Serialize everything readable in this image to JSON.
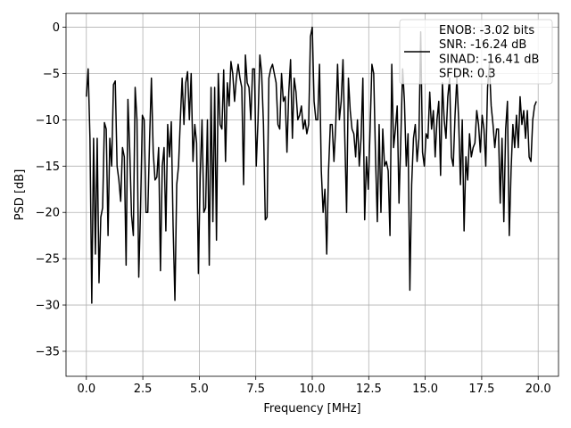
{
  "chart_data": {
    "type": "line",
    "xlabel": "Frequency [MHz]",
    "ylabel": "PSD [dB]",
    "xlim": [
      -0.9,
      20.9
    ],
    "ylim": [
      -37.7,
      1.5
    ],
    "grid": true,
    "legend_position": "top-right",
    "xticks": [
      0.0,
      2.5,
      5.0,
      7.5,
      10.0,
      12.5,
      15.0,
      17.5,
      20.0
    ],
    "xtick_labels": [
      "0.0",
      "2.5",
      "5.0",
      "7.5",
      "10.0",
      "12.5",
      "15.0",
      "17.5",
      "20.0"
    ],
    "yticks": [
      0,
      -5,
      -10,
      -15,
      -20,
      -25,
      -30,
      -35
    ],
    "ytick_labels": [
      "0",
      "−5",
      "−10",
      "−15",
      "−20",
      "−25",
      "−30",
      "−35"
    ],
    "legend": [
      "ENOB: -3.02 bits",
      "SNR: -16.24 dB",
      "SINAD: -16.41 dB",
      "SFDR: 0.3"
    ],
    "series": [
      {
        "color": "#000000",
        "x": [
          0.0,
          0.08,
          0.16,
          0.24,
          0.32,
          0.4,
          0.48,
          0.56,
          0.64,
          0.72,
          0.8,
          0.88,
          0.96,
          1.04,
          1.12,
          1.2,
          1.28,
          1.36,
          1.44,
          1.52,
          1.6,
          1.68,
          1.76,
          1.84,
          1.92,
          2.0,
          2.08,
          2.16,
          2.24,
          2.32,
          2.4,
          2.48,
          2.56,
          2.64,
          2.72,
          2.8,
          2.88,
          2.96,
          3.04,
          3.12,
          3.2,
          3.28,
          3.36,
          3.44,
          3.52,
          3.6,
          3.68,
          3.76,
          3.84,
          3.92,
          4.0,
          4.08,
          4.16,
          4.24,
          4.32,
          4.4,
          4.48,
          4.56,
          4.64,
          4.72,
          4.8,
          4.88,
          4.96,
          5.04,
          5.12,
          5.2,
          5.28,
          5.36,
          5.44,
          5.52,
          5.6,
          5.68,
          5.76,
          5.84,
          5.92,
          6.0,
          6.08,
          6.16,
          6.24,
          6.32,
          6.4,
          6.48,
          6.56,
          6.64,
          6.72,
          6.8,
          6.88,
          6.96,
          7.04,
          7.12,
          7.2,
          7.28,
          7.36,
          7.44,
          7.52,
          7.6,
          7.68,
          7.76,
          7.84,
          7.92,
          8.0,
          8.08,
          8.16,
          8.24,
          8.32,
          8.4,
          8.48,
          8.56,
          8.64,
          8.72,
          8.8,
          8.88,
          8.96,
          9.04,
          9.12,
          9.2,
          9.28,
          9.36,
          9.44,
          9.52,
          9.6,
          9.68,
          9.76,
          9.84,
          9.92,
          10.0,
          10.08,
          10.16,
          10.24,
          10.32,
          10.4,
          10.48,
          10.56,
          10.64,
          10.72,
          10.8,
          10.88,
          10.96,
          11.04,
          11.12,
          11.2,
          11.28,
          11.36,
          11.44,
          11.52,
          11.6,
          11.68,
          11.76,
          11.84,
          11.92,
          12.0,
          12.08,
          12.16,
          12.24,
          12.32,
          12.4,
          12.48,
          12.56,
          12.64,
          12.72,
          12.8,
          12.88,
          12.96,
          13.04,
          13.12,
          13.2,
          13.28,
          13.36,
          13.44,
          13.52,
          13.6,
          13.68,
          13.76,
          13.84,
          13.92,
          14.0,
          14.08,
          14.16,
          14.24,
          14.32,
          14.4,
          14.48,
          14.56,
          14.64,
          14.72,
          14.8,
          14.88,
          14.96,
          15.04,
          15.12,
          15.2,
          15.28,
          15.36,
          15.44,
          15.52,
          15.6,
          15.68,
          15.76,
          15.84,
          15.92,
          16.0,
          16.08,
          16.16,
          16.24,
          16.32,
          16.4,
          16.48,
          16.56,
          16.64,
          16.72,
          16.8,
          16.88,
          16.96,
          17.04,
          17.12,
          17.2,
          17.28,
          17.36,
          17.44,
          17.52,
          17.6,
          17.68,
          17.76,
          17.84,
          17.92,
          18.0,
          18.08,
          18.16,
          18.24,
          18.32,
          18.4,
          18.48,
          18.56,
          18.64,
          18.72,
          18.8,
          18.88,
          18.96,
          19.04,
          19.12,
          19.2,
          19.28,
          19.36,
          19.44,
          19.52,
          19.6,
          19.68,
          19.76,
          19.84,
          19.92
        ],
        "y": [
          -7.5,
          -4.5,
          -12.0,
          -29.8,
          -12.0,
          -24.5,
          -12.0,
          -27.6,
          -20.5,
          -19.5,
          -10.3,
          -11.0,
          -22.5,
          -12.0,
          -15.0,
          -6.2,
          -5.8,
          -15.0,
          -16.5,
          -18.8,
          -13.0,
          -14.0,
          -25.7,
          -7.8,
          -13.3,
          -20.3,
          -22.5,
          -6.5,
          -10.0,
          -27.0,
          -19.5,
          -9.5,
          -10.0,
          -20.0,
          -20.0,
          -12.0,
          -5.5,
          -13.5,
          -16.5,
          -16.2,
          -13.0,
          -26.3,
          -15.0,
          -13.0,
          -22.0,
          -10.5,
          -14.0,
          -10.2,
          -21.5,
          -29.5,
          -17.0,
          -15.0,
          -10.0,
          -5.5,
          -10.5,
          -6.0,
          -4.8,
          -10.0,
          -5.0,
          -14.5,
          -10.5,
          -12.5,
          -26.6,
          -16.0,
          -10.0,
          -20.0,
          -19.5,
          -10.0,
          -25.7,
          -6.5,
          -21.0,
          -6.5,
          -23.0,
          -5.0,
          -10.5,
          -11.0,
          -4.6,
          -14.5,
          -6.0,
          -8.5,
          -3.7,
          -5.0,
          -8.0,
          -5.5,
          -4.0,
          -5.5,
          -6.5,
          -17.0,
          -3.0,
          -6.0,
          -6.5,
          -10.0,
          -4.5,
          -4.5,
          -15.0,
          -10.0,
          -3.0,
          -5.0,
          -10.5,
          -20.8,
          -20.5,
          -5.5,
          -4.5,
          -4.0,
          -5.0,
          -6.0,
          -10.5,
          -11.0,
          -5.0,
          -8.0,
          -7.5,
          -13.5,
          -7.0,
          -3.5,
          -12.0,
          -5.5,
          -7.0,
          -10.0,
          -9.5,
          -8.5,
          -11.0,
          -10.0,
          -11.5,
          -10.5,
          -1.0,
          0.0,
          -8.0,
          -10.0,
          -10.0,
          -4.0,
          -15.5,
          -20.0,
          -17.5,
          -24.5,
          -15.5,
          -10.5,
          -10.5,
          -14.5,
          -10.5,
          -4.0,
          -10.0,
          -8.0,
          -3.5,
          -12.0,
          -20.0,
          -5.5,
          -9.0,
          -11.0,
          -11.5,
          -14.0,
          -10.0,
          -15.0,
          -12.0,
          -5.5,
          -20.8,
          -14.0,
          -17.5,
          -11.0,
          -4.0,
          -5.0,
          -14.0,
          -21.0,
          -10.5,
          -20.0,
          -11.0,
          -15.0,
          -14.5,
          -15.5,
          -22.5,
          -4.0,
          -13.0,
          -11.0,
          -8.5,
          -19.0,
          -12.0,
          -4.5,
          -8.0,
          -15.0,
          -11.5,
          -28.4,
          -17.0,
          -12.0,
          -10.5,
          -14.5,
          -12.0,
          -0.5,
          -13.5,
          -15.0,
          -11.5,
          -12.0,
          -7.0,
          -11.0,
          -9.0,
          -14.0,
          -10.0,
          -8.0,
          -16.0,
          -6.0,
          -10.0,
          -12.0,
          -7.5,
          -5.5,
          -14.0,
          -15.0,
          -9.5,
          -5.5,
          -10.0,
          -17.0,
          -10.0,
          -22.0,
          -14.0,
          -16.5,
          -11.5,
          -14.0,
          -13.0,
          -12.5,
          -9.0,
          -10.5,
          -13.5,
          -9.5,
          -11.0,
          -15.0,
          -6.5,
          -4.0,
          -8.5,
          -10.5,
          -13.0,
          -11.0,
          -11.0,
          -19.0,
          -12.0,
          -21.0,
          -11.0,
          -8.0,
          -22.5,
          -15.5,
          -10.5,
          -13.0,
          -9.5,
          -13.0,
          -7.5,
          -10.5,
          -9.0,
          -12.0,
          -9.0,
          -14.0,
          -14.5,
          -10.0,
          -8.5,
          -8.0
        ]
      }
    ]
  }
}
